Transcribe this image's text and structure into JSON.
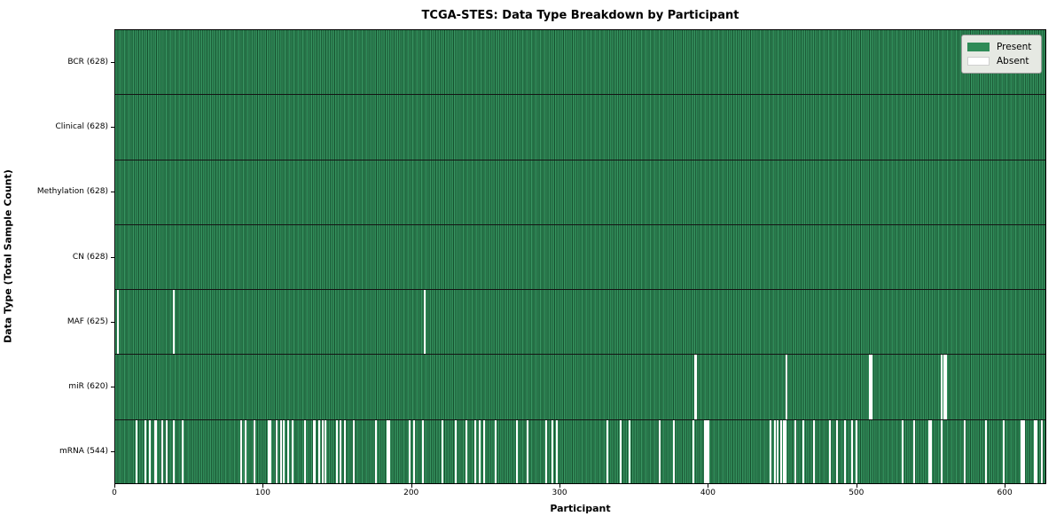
{
  "title": "TCGA-STES: Data Type Breakdown by Participant",
  "chart_data": {
    "type": "heatmap",
    "title": "TCGA-STES: Data Type Breakdown by Participant",
    "xlabel": "Participant",
    "ylabel": "Data Type (Total Sample Count)",
    "x_ticks": [
      0,
      100,
      200,
      300,
      400,
      500,
      600
    ],
    "xlim": [
      0,
      628
    ],
    "n_participants": 628,
    "grid": false,
    "legend_position": "upper right",
    "legend": [
      {
        "label": "Present",
        "color": "#2e8b57"
      },
      {
        "label": "Absent",
        "color": "#ffffff"
      }
    ],
    "colors": {
      "present": "#2e8b57",
      "present_edge": "#1d5c39",
      "absent": "#ffffff",
      "frame": "#000000"
    },
    "rows": [
      {
        "name": "BCR",
        "present_count": 628,
        "label": "BCR (628)",
        "absent": []
      },
      {
        "name": "Clinical",
        "present_count": 628,
        "label": "Clinical (628)",
        "absent": []
      },
      {
        "name": "Methylation",
        "present_count": 628,
        "label": "Methylation (628)",
        "absent": []
      },
      {
        "name": "CN",
        "present_count": 628,
        "label": "CN (628)",
        "absent": []
      },
      {
        "name": "MAF",
        "present_count": 625,
        "label": "MAF (625)",
        "absent": [
          1,
          39,
          208
        ]
      },
      {
        "name": "miR",
        "present_count": 620,
        "label": "miR (620)",
        "absent": [
          390,
          391,
          452,
          508,
          509,
          556,
          558,
          559
        ]
      },
      {
        "name": "mRNA",
        "present_count": 544,
        "label": "mRNA (544)",
        "absent": [
          14,
          20,
          23,
          26,
          27,
          31,
          34,
          39,
          45,
          84,
          87,
          93,
          103,
          104,
          108,
          111,
          113,
          116,
          119,
          127,
          133,
          134,
          137,
          139,
          141,
          149,
          151,
          154,
          160,
          175,
          183,
          184,
          198,
          201,
          207,
          220,
          229,
          236,
          242,
          245,
          248,
          256,
          270,
          277,
          290,
          294,
          297,
          331,
          340,
          346,
          366,
          376,
          389,
          397,
          398,
          399,
          441,
          444,
          446,
          448,
          450,
          451,
          458,
          463,
          470,
          481,
          486,
          491,
          496,
          499,
          530,
          538,
          548,
          549,
          556,
          572,
          586,
          598,
          610,
          611,
          612,
          619,
          620,
          624
        ]
      }
    ]
  }
}
